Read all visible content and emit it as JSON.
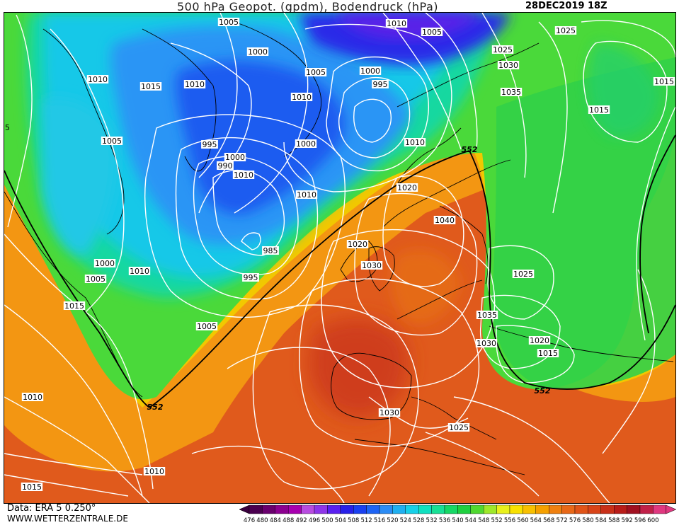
{
  "header": {
    "title": "500 hPa Geopot. (gpdm), Bodendruck (hPa)",
    "date": "28DEC2019 18Z"
  },
  "footer": {
    "data_source": "Data: ERA 5 0.250°",
    "website": "WWW.WETTERZENTRALE.DE"
  },
  "colorbar": {
    "values": [
      "476",
      "480",
      "484",
      "488",
      "492",
      "496",
      "500",
      "504",
      "508",
      "512",
      "516",
      "520",
      "524",
      "528",
      "532",
      "536",
      "540",
      "544",
      "548",
      "552",
      "556",
      "560",
      "564",
      "568",
      "572",
      "576",
      "580",
      "584",
      "588",
      "592",
      "596",
      "600"
    ],
    "colors": [
      "#4b0050",
      "#6a006e",
      "#8c0090",
      "#a800b0",
      "#b84ce0",
      "#8e35e8",
      "#5a20f0",
      "#2820e8",
      "#1a40f0",
      "#1e64f5",
      "#2b8cf5",
      "#20b0f0",
      "#17d0e8",
      "#10e0c0",
      "#18e095",
      "#16d865",
      "#1fd040",
      "#50d830",
      "#9ee82a",
      "#e8f01c",
      "#f8e000",
      "#f8c000",
      "#f5a000",
      "#ef8010",
      "#e86818",
      "#e05418",
      "#d84418",
      "#c83018",
      "#b81c18",
      "#a01020",
      "#c02048",
      "#e03880"
    ]
  },
  "isobars": [
    {
      "label": "1005"
    },
    {
      "label": "1000"
    },
    {
      "label": "1010"
    },
    {
      "label": "1005"
    },
    {
      "label": "1010"
    },
    {
      "label": "1015"
    },
    {
      "label": "1010"
    },
    {
      "label": "1000"
    },
    {
      "label": "1005"
    },
    {
      "label": "1010"
    },
    {
      "label": "995"
    },
    {
      "label": "1005"
    },
    {
      "label": "1000"
    },
    {
      "label": "990"
    },
    {
      "label": "1010"
    },
    {
      "label": "1000"
    },
    {
      "label": "995"
    },
    {
      "label": "985"
    },
    {
      "label": "995"
    },
    {
      "label": "1000"
    },
    {
      "label": "1010"
    },
    {
      "label": "1005"
    },
    {
      "label": "1010"
    },
    {
      "label": "1015"
    },
    {
      "label": "1005"
    },
    {
      "label": "1010"
    },
    {
      "label": "1020"
    },
    {
      "label": "1015"
    },
    {
      "label": "1020"
    },
    {
      "label": "1030"
    },
    {
      "label": "1040"
    },
    {
      "label": "1025"
    },
    {
      "label": "1025"
    },
    {
      "label": "1030"
    },
    {
      "label": "1035"
    },
    {
      "label": "1025"
    },
    {
      "label": "1015"
    },
    {
      "label": "1015"
    },
    {
      "label": "1025"
    },
    {
      "label": "1035"
    },
    {
      "label": "1030"
    },
    {
      "label": "1020"
    },
    {
      "label": "1015"
    },
    {
      "label": "1030"
    },
    {
      "label": "1025"
    },
    {
      "label": "1010"
    },
    {
      "label": "1015"
    },
    {
      "label": "1010"
    }
  ],
  "height_labels": [
    {
      "label": "552"
    },
    {
      "label": "552"
    },
    {
      "label": "552"
    }
  ],
  "edge_label": "5"
}
